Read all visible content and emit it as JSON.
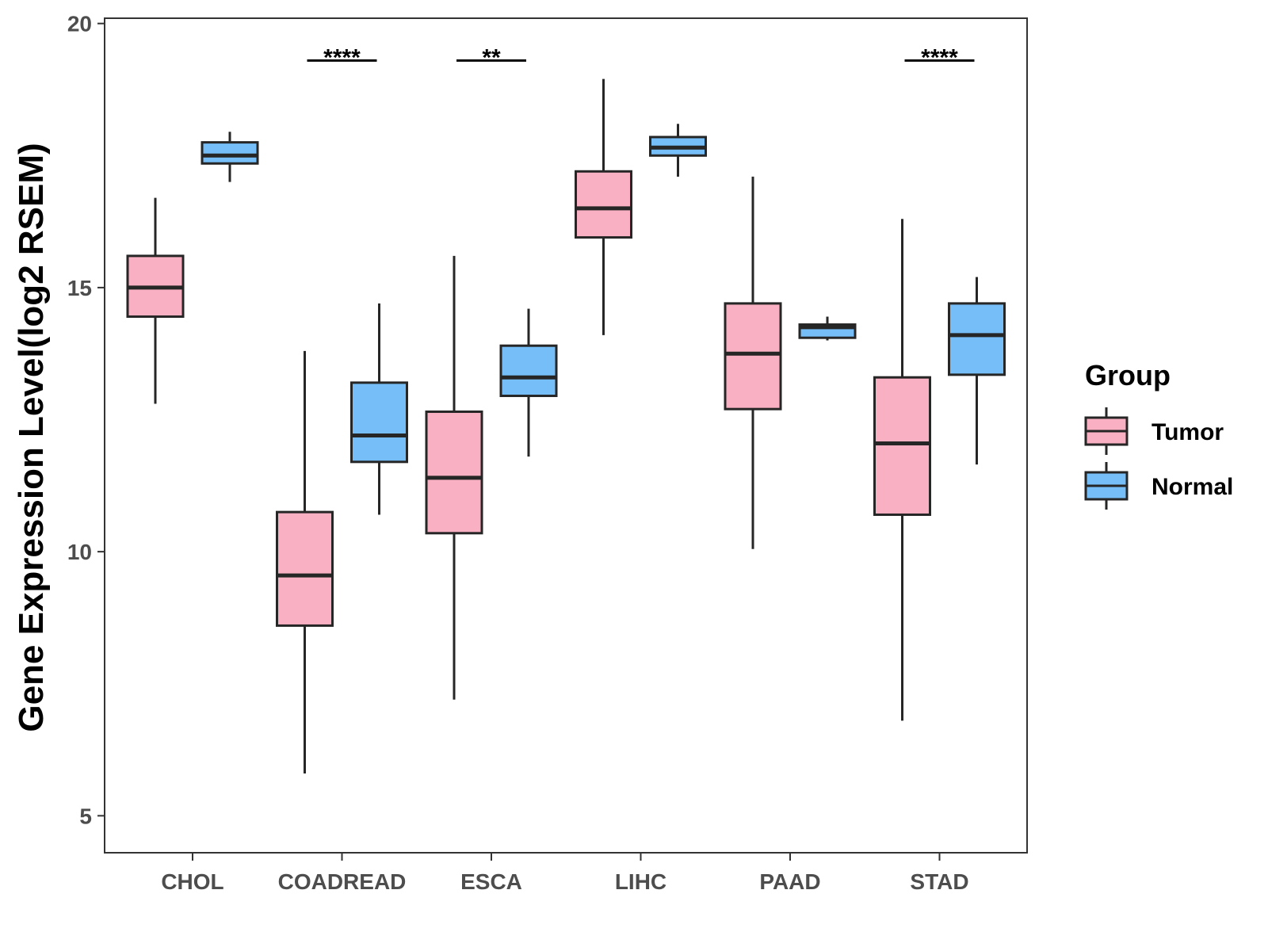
{
  "chart_data": {
    "type": "boxplot",
    "title": "",
    "xlabel": "",
    "ylabel": "Gene Expression Level(log2 RSEM)",
    "ylim": [
      4.3,
      20.1
    ],
    "yticks": [
      5,
      10,
      15,
      20
    ],
    "ytick_labels": [
      "5",
      "10",
      "15",
      "20"
    ],
    "categories": [
      "CHOL",
      "COADREAD",
      "ESCA",
      "LIHC",
      "PAAD",
      "STAD"
    ],
    "grid": false,
    "legend": {
      "title": "Group",
      "position": "right",
      "entries": [
        {
          "name": "Tumor",
          "color": "#FAB0C3"
        },
        {
          "name": "Normal",
          "color": "#75BEF7"
        }
      ]
    },
    "series": [
      {
        "name": "Tumor",
        "color": "#FAB0C3",
        "boxes": [
          {
            "category": "CHOL",
            "min": 12.8,
            "q1": 14.45,
            "median": 15.0,
            "q3": 15.6,
            "max": 16.7
          },
          {
            "category": "COADREAD",
            "min": 5.8,
            "q1": 8.6,
            "median": 9.55,
            "q3": 10.75,
            "max": 13.8
          },
          {
            "category": "ESCA",
            "min": 7.2,
            "q1": 10.35,
            "median": 11.4,
            "q3": 12.65,
            "max": 15.6
          },
          {
            "category": "LIHC",
            "min": 14.1,
            "q1": 15.95,
            "median": 16.5,
            "q3": 17.2,
            "max": 18.95
          },
          {
            "category": "PAAD",
            "min": 10.05,
            "q1": 12.7,
            "median": 13.75,
            "q3": 14.7,
            "max": 17.1
          },
          {
            "category": "STAD",
            "min": 6.8,
            "q1": 10.7,
            "median": 12.05,
            "q3": 13.3,
            "max": 16.3
          }
        ]
      },
      {
        "name": "Normal",
        "color": "#75BEF7",
        "boxes": [
          {
            "category": "CHOL",
            "min": 17.0,
            "q1": 17.35,
            "median": 17.5,
            "q3": 17.75,
            "max": 17.95
          },
          {
            "category": "COADREAD",
            "min": 10.7,
            "q1": 11.7,
            "median": 12.2,
            "q3": 13.2,
            "max": 14.7
          },
          {
            "category": "ESCA",
            "min": 11.8,
            "q1": 12.95,
            "median": 13.3,
            "q3": 13.9,
            "max": 14.6
          },
          {
            "category": "LIHC",
            "min": 17.1,
            "q1": 17.5,
            "median": 17.65,
            "q3": 17.85,
            "max": 18.1
          },
          {
            "category": "PAAD",
            "min": 14.0,
            "q1": 14.05,
            "median": 14.25,
            "q3": 14.3,
            "max": 14.45
          },
          {
            "category": "STAD",
            "min": 11.65,
            "q1": 13.35,
            "median": 14.1,
            "q3": 14.7,
            "max": 15.2
          }
        ]
      }
    ],
    "annotations": [
      {
        "category": "COADREAD",
        "label": "****",
        "y": 19.3
      },
      {
        "category": "ESCA",
        "label": "**",
        "y": 19.3
      },
      {
        "category": "STAD",
        "label": "****",
        "y": 19.3
      }
    ]
  }
}
